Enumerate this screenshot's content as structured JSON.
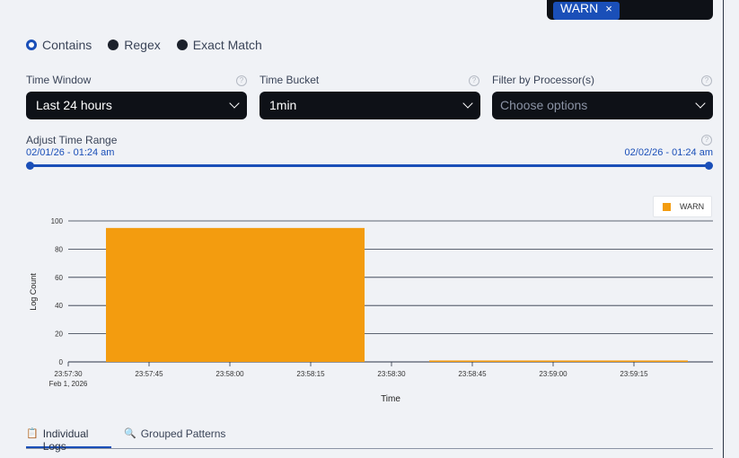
{
  "level_filter": {
    "tags": [
      {
        "label": "WARN",
        "remove": "×"
      }
    ]
  },
  "match_mode": {
    "options": [
      "Contains",
      "Regex",
      "Exact Match"
    ],
    "selected": "Contains"
  },
  "time_window": {
    "label": "Time Window",
    "value": "Last 24 hours",
    "help": "?"
  },
  "time_bucket": {
    "label": "Time Bucket",
    "value": "1min",
    "help": "?"
  },
  "processor_filter": {
    "label": "Filter by Processor(s)",
    "placeholder": "Choose options",
    "help": "?"
  },
  "time_range": {
    "label": "Adjust Time Range",
    "help": "?",
    "start": "02/01/26 - 01:24 am",
    "end": "02/02/26 - 01:24 am"
  },
  "chart_data": {
    "type": "bar",
    "ylabel": "Log Count",
    "xlabel": "Time",
    "ylim": [
      0,
      100
    ],
    "yticks": [
      0,
      20,
      40,
      60,
      80,
      100
    ],
    "xticks": [
      "23:57:30",
      "23:57:45",
      "23:58:00",
      "23:58:15",
      "23:58:30",
      "23:58:45",
      "23:59:00",
      "23:59:15"
    ],
    "x_sublabel": "Feb 1, 2026",
    "grid": true,
    "legend_position": "top-right",
    "series": [
      {
        "name": "WARN",
        "color": "#f39c0f",
        "bars": [
          {
            "start": "23:57:37",
            "end": "23:58:25",
            "value": 95
          },
          {
            "start": "23:58:37",
            "end": "23:59:25",
            "value": 1
          }
        ]
      }
    ]
  },
  "tabs": [
    {
      "label": "Individual Logs",
      "icon": "clipboard-icon",
      "active": true
    },
    {
      "label": "Grouped Patterns",
      "icon": "magnifier-icon",
      "active": false
    }
  ],
  "colors": {
    "accent": "#1a4fb8",
    "bar": "#f39c0f",
    "input_bg": "#0e1117"
  }
}
